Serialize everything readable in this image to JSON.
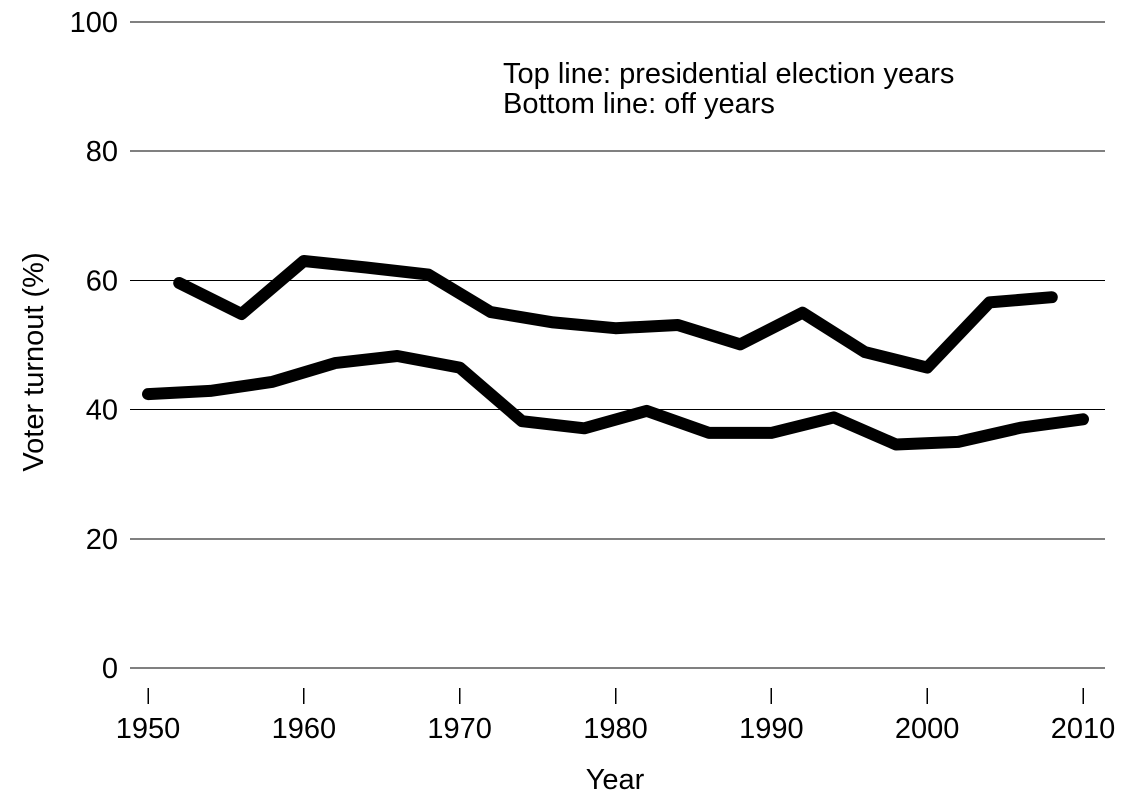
{
  "chart_data": {
    "type": "line",
    "xlabel": "Year",
    "ylabel": "Voter turnout (%)",
    "xlim": [
      1950,
      2010
    ],
    "ylim": [
      0,
      100
    ],
    "xticks": [
      "1950",
      "1960",
      "1970",
      "1980",
      "1990",
      "2000",
      "2010"
    ],
    "yticks": [
      "0",
      "20",
      "40",
      "60",
      "80",
      "100"
    ],
    "grid": "horizontal",
    "annotations": [
      "Top line: presidential election years",
      "Bottom line: off years"
    ],
    "series": [
      {
        "x": [
          1952,
          1956,
          1960,
          1964,
          1968,
          1972,
          1976,
          1980,
          1984,
          1988,
          1992,
          1996,
          2000,
          2004,
          2008
        ],
        "values": [
          59.6,
          54.8,
          63.0,
          62.0,
          60.9,
          55.1,
          53.5,
          52.6,
          53.1,
          50.1,
          55.0,
          48.9,
          46.5,
          56.6,
          57.4
        ]
      },
      {
        "x": [
          1950,
          1954,
          1958,
          1962,
          1966,
          1970,
          1974,
          1978,
          1982,
          1986,
          1990,
          1994,
          1998,
          2002,
          2006,
          2010
        ],
        "values": [
          42.4,
          42.9,
          44.3,
          47.2,
          48.3,
          46.5,
          38.2,
          37.1,
          39.8,
          36.4,
          36.4,
          38.8,
          34.6,
          35.0,
          37.2,
          38.5
        ]
      }
    ],
    "colors": {
      "line": "#000000",
      "grid": "#000000",
      "background": "#ffffff"
    }
  }
}
